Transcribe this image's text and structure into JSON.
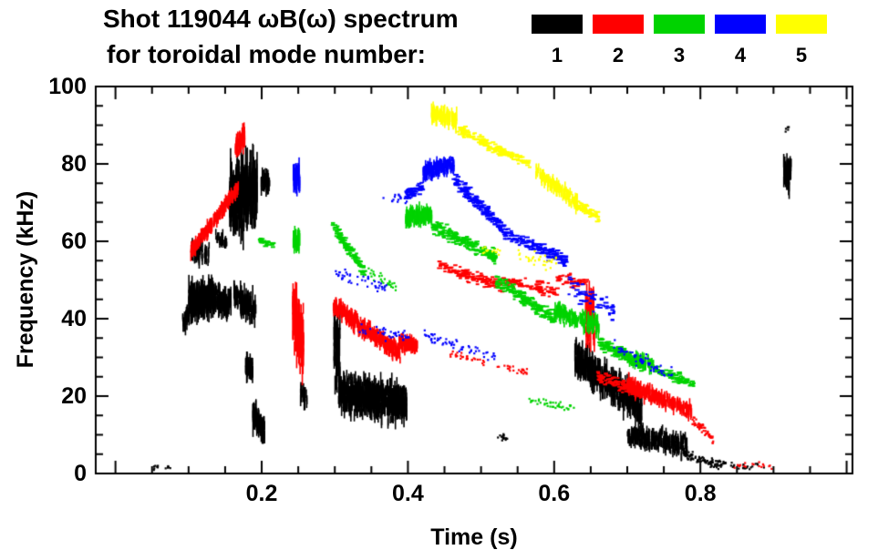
{
  "chart_data": {
    "type": "scatter",
    "subtype": "magnetic-spectrogram",
    "title_line1": "Shot 119044 ωB(ω) spectrum",
    "title_line2": "for toroidal mode number:",
    "xlabel": "Time (s)",
    "ylabel": "Frequency (kHz)",
    "xlim": [
      -0.027,
      1.008
    ],
    "ylim": [
      0,
      100
    ],
    "grid": false,
    "legend_position": "top-right",
    "legend": [
      {
        "mode": "1",
        "color": "#000000"
      },
      {
        "mode": "2",
        "color": "#ff0000"
      },
      {
        "mode": "3",
        "color": "#00d300"
      },
      {
        "mode": "4",
        "color": "#0000ff"
      },
      {
        "mode": "5",
        "color": "#ffff00"
      }
    ],
    "x_major_ticks": [
      0,
      0.2,
      0.4,
      0.6,
      0.8,
      1.0
    ],
    "x_minor_step": 0.05,
    "x_tick_labels": [
      {
        "v": 0.2,
        "label": "0.2"
      },
      {
        "v": 0.4,
        "label": "0.4"
      },
      {
        "v": 0.6,
        "label": "0.6"
      },
      {
        "v": 0.8,
        "label": "0.8"
      }
    ],
    "y_major_ticks": [
      0,
      20,
      40,
      60,
      80,
      100
    ],
    "y_minor_step": 5,
    "y_tick_labels": [
      {
        "v": 0,
        "label": "0"
      },
      {
        "v": 20,
        "label": "20"
      },
      {
        "v": 40,
        "label": "40"
      },
      {
        "v": 60,
        "label": "60"
      },
      {
        "v": 80,
        "label": "80"
      },
      {
        "v": 100,
        "label": "100"
      }
    ],
    "cluster_key": "m=toroidal mode number; t=[t_start,t_end] s; f=[f_start,f_end] kHz center line; s=frequency scatter (kHz); n=marks; st=mark style (v=vertical chirp line, h=horizontal dash, d=dot); l=max chirp length (kHz)",
    "clusters": [
      {
        "m": 1,
        "t": [
          0.048,
          0.058
        ],
        "f": [
          1.5,
          1.5
        ],
        "s": 1,
        "n": 7,
        "st": "d"
      },
      {
        "m": 1,
        "t": [
          0.068,
          0.076
        ],
        "f": [
          1.5,
          1.5
        ],
        "s": 1,
        "n": 6,
        "st": "d"
      },
      {
        "m": 1,
        "t": [
          0.092,
          0.101
        ],
        "f": [
          39,
          41
        ],
        "s": 3,
        "n": 30,
        "st": "v",
        "l": 4
      },
      {
        "m": 1,
        "t": [
          0.1,
          0.136
        ],
        "f": [
          44,
          46
        ],
        "s": 6,
        "n": 300,
        "st": "v",
        "l": 5
      },
      {
        "m": 1,
        "t": [
          0.104,
          0.128
        ],
        "f": [
          57,
          58
        ],
        "s": 4,
        "n": 45,
        "st": "v",
        "l": 4
      },
      {
        "m": 1,
        "t": [
          0.136,
          0.158
        ],
        "f": [
          45,
          44
        ],
        "s": 4.5,
        "n": 110,
        "st": "v",
        "l": 4
      },
      {
        "m": 1,
        "t": [
          0.137,
          0.152
        ],
        "f": [
          61,
          60
        ],
        "s": 2.5,
        "n": 25,
        "st": "v",
        "l": 3
      },
      {
        "m": 1,
        "t": [
          0.156,
          0.194
        ],
        "f": [
          71,
          73
        ],
        "s": 11,
        "n": 380,
        "st": "v",
        "l": 8
      },
      {
        "m": 1,
        "t": [
          0.162,
          0.192
        ],
        "f": [
          46,
          42
        ],
        "s": 4.5,
        "n": 100,
        "st": "v",
        "l": 5
      },
      {
        "m": 1,
        "t": [
          0.178,
          0.188
        ],
        "f": [
          28,
          27
        ],
        "s": 4,
        "n": 55,
        "st": "v",
        "l": 4
      },
      {
        "m": 1,
        "t": [
          0.188,
          0.204
        ],
        "f": [
          15,
          11
        ],
        "s": 4,
        "n": 90,
        "st": "v",
        "l": 5
      },
      {
        "m": 1,
        "t": [
          0.199,
          0.211
        ],
        "f": [
          75,
          75
        ],
        "s": 3.5,
        "n": 45,
        "st": "v",
        "l": 4
      },
      {
        "m": 1,
        "t": [
          0.252,
          0.262
        ],
        "f": [
          21,
          20
        ],
        "s": 3,
        "n": 30,
        "st": "v",
        "l": 3
      },
      {
        "m": 1,
        "t": [
          0.299,
          0.307
        ],
        "f": [
          33,
          30
        ],
        "s": 13,
        "n": 80,
        "st": "v",
        "l": 6
      },
      {
        "m": 1,
        "t": [
          0.305,
          0.398
        ],
        "f": [
          21,
          18
        ],
        "s": 6.5,
        "n": 750,
        "st": "v",
        "l": 4
      },
      {
        "m": 1,
        "t": [
          0.52,
          0.536
        ],
        "f": [
          10,
          9
        ],
        "s": 1.5,
        "n": 14,
        "st": "d"
      },
      {
        "m": 1,
        "t": [
          0.628,
          0.72
        ],
        "f": [
          30,
          17
        ],
        "s": 5.5,
        "n": 460,
        "st": "v",
        "l": 5
      },
      {
        "m": 1,
        "t": [
          0.7,
          0.782
        ],
        "f": [
          10,
          7
        ],
        "s": 3.5,
        "n": 320,
        "st": "v",
        "l": 3
      },
      {
        "m": 1,
        "t": [
          0.782,
          0.835
        ],
        "f": [
          4.5,
          2
        ],
        "s": 1.8,
        "n": 90,
        "st": "d"
      },
      {
        "m": 1,
        "t": [
          0.84,
          0.888
        ],
        "f": [
          2,
          2
        ],
        "s": 1.2,
        "n": 22,
        "st": "d"
      },
      {
        "m": 1,
        "t": [
          0.914,
          0.924
        ],
        "f": [
          78,
          78
        ],
        "s": 5.5,
        "n": 70,
        "st": "v",
        "l": 5
      },
      {
        "m": 1,
        "t": [
          0.916,
          0.921
        ],
        "f": [
          89,
          89
        ],
        "s": 1.5,
        "n": 5,
        "st": "d"
      },
      {
        "m": 2,
        "t": [
          0.103,
          0.168
        ],
        "f": [
          57,
          74
        ],
        "s": 2.3,
        "n": 220,
        "st": "v",
        "l": 3
      },
      {
        "m": 2,
        "t": [
          0.164,
          0.177
        ],
        "f": [
          84,
          87
        ],
        "s": 3.5,
        "n": 70,
        "st": "v",
        "l": 4
      },
      {
        "m": 2,
        "t": [
          0.242,
          0.257
        ],
        "f": [
          40,
          34
        ],
        "s": 12,
        "n": 170,
        "st": "v",
        "l": 6
      },
      {
        "m": 2,
        "t": [
          0.298,
          0.39
        ],
        "f": [
          43,
          31
        ],
        "s": 2.8,
        "n": 400,
        "st": "v",
        "l": 3
      },
      {
        "m": 2,
        "t": [
          0.388,
          0.413
        ],
        "f": [
          34,
          33
        ],
        "s": 2.2,
        "n": 140,
        "st": "v",
        "l": 3
      },
      {
        "m": 2,
        "t": [
          0.443,
          0.53
        ],
        "f": [
          54,
          48
        ],
        "s": 2.3,
        "n": 130,
        "st": "h"
      },
      {
        "m": 2,
        "t": [
          0.53,
          0.605
        ],
        "f": [
          50,
          47
        ],
        "s": 2.3,
        "n": 90,
        "st": "h"
      },
      {
        "m": 2,
        "t": [
          0.605,
          0.645
        ],
        "f": [
          50,
          49
        ],
        "s": 2.5,
        "n": 45,
        "st": "h"
      },
      {
        "m": 2,
        "t": [
          0.643,
          0.655
        ],
        "f": [
          42,
          40
        ],
        "s": 11,
        "n": 70,
        "st": "v",
        "l": 6
      },
      {
        "m": 2,
        "t": [
          0.458,
          0.505
        ],
        "f": [
          31,
          29
        ],
        "s": 1.5,
        "n": 30,
        "st": "d"
      },
      {
        "m": 2,
        "t": [
          0.52,
          0.565
        ],
        "f": [
          28,
          26
        ],
        "s": 1.5,
        "n": 25,
        "st": "d"
      },
      {
        "m": 2,
        "t": [
          0.66,
          0.72
        ],
        "f": [
          25,
          21
        ],
        "s": 2.3,
        "n": 130,
        "st": "h"
      },
      {
        "m": 2,
        "t": [
          0.7,
          0.788
        ],
        "f": [
          23,
          16
        ],
        "s": 2.4,
        "n": 280,
        "st": "v",
        "l": 3
      },
      {
        "m": 2,
        "t": [
          0.788,
          0.818
        ],
        "f": [
          14,
          9
        ],
        "s": 2,
        "n": 55,
        "st": "d"
      },
      {
        "m": 2,
        "t": [
          0.842,
          0.902
        ],
        "f": [
          2,
          2
        ],
        "s": 1.2,
        "n": 18,
        "st": "d"
      },
      {
        "m": 3,
        "t": [
          0.197,
          0.216
        ],
        "f": [
          60,
          59
        ],
        "s": 1.5,
        "n": 28,
        "st": "h"
      },
      {
        "m": 3,
        "t": [
          0.243,
          0.252
        ],
        "f": [
          60,
          60
        ],
        "s": 3.5,
        "n": 40,
        "st": "v",
        "l": 4
      },
      {
        "m": 3,
        "t": [
          0.297,
          0.342
        ],
        "f": [
          64,
          52
        ],
        "s": 2.3,
        "n": 120,
        "st": "h"
      },
      {
        "m": 3,
        "t": [
          0.345,
          0.388
        ],
        "f": [
          52,
          48
        ],
        "s": 2,
        "n": 28,
        "st": "d"
      },
      {
        "m": 3,
        "t": [
          0.397,
          0.433
        ],
        "f": [
          66,
          67
        ],
        "s": 2.4,
        "n": 140,
        "st": "v",
        "l": 4
      },
      {
        "m": 3,
        "t": [
          0.433,
          0.52
        ],
        "f": [
          64,
          56
        ],
        "s": 2.4,
        "n": 210,
        "st": "h"
      },
      {
        "m": 3,
        "t": [
          0.52,
          0.6
        ],
        "f": [
          50,
          40
        ],
        "s": 2.4,
        "n": 170,
        "st": "h"
      },
      {
        "m": 3,
        "t": [
          0.6,
          0.662
        ],
        "f": [
          42,
          38
        ],
        "s": 3.2,
        "n": 170,
        "st": "v",
        "l": 3
      },
      {
        "m": 3,
        "t": [
          0.662,
          0.72
        ],
        "f": [
          34,
          28
        ],
        "s": 2.3,
        "n": 150,
        "st": "h"
      },
      {
        "m": 3,
        "t": [
          0.7,
          0.737
        ],
        "f": [
          30,
          28
        ],
        "s": 2,
        "n": 90,
        "st": "v",
        "l": 3
      },
      {
        "m": 3,
        "t": [
          0.737,
          0.792
        ],
        "f": [
          27,
          23
        ],
        "s": 1.8,
        "n": 85,
        "st": "h"
      },
      {
        "m": 3,
        "t": [
          0.565,
          0.628
        ],
        "f": [
          19,
          17
        ],
        "s": 1.5,
        "n": 40,
        "st": "d"
      },
      {
        "m": 4,
        "t": [
          0.243,
          0.252
        ],
        "f": [
          76,
          77
        ],
        "s": 5.5,
        "n": 45,
        "st": "v",
        "l": 5
      },
      {
        "m": 4,
        "t": [
          0.3,
          0.372
        ],
        "f": [
          52,
          48
        ],
        "s": 2.8,
        "n": 45,
        "st": "d"
      },
      {
        "m": 4,
        "t": [
          0.332,
          0.402
        ],
        "f": [
          38,
          35
        ],
        "s": 2.4,
        "n": 38,
        "st": "d"
      },
      {
        "m": 4,
        "t": [
          0.365,
          0.4
        ],
        "f": [
          71,
          71
        ],
        "s": 1.8,
        "n": 18,
        "st": "d"
      },
      {
        "m": 4,
        "t": [
          0.398,
          0.421
        ],
        "f": [
          72,
          74
        ],
        "s": 2,
        "n": 55,
        "st": "h"
      },
      {
        "m": 4,
        "t": [
          0.421,
          0.463
        ],
        "f": [
          78,
          80
        ],
        "s": 2.4,
        "n": 150,
        "st": "v",
        "l": 3
      },
      {
        "m": 4,
        "t": [
          0.463,
          0.532
        ],
        "f": [
          76,
          63
        ],
        "s": 2.4,
        "n": 170,
        "st": "h"
      },
      {
        "m": 4,
        "t": [
          0.532,
          0.617
        ],
        "f": [
          62,
          55
        ],
        "s": 2.4,
        "n": 140,
        "st": "h"
      },
      {
        "m": 4,
        "t": [
          0.422,
          0.52
        ],
        "f": [
          36,
          30
        ],
        "s": 2.3,
        "n": 60,
        "st": "d"
      },
      {
        "m": 4,
        "t": [
          0.62,
          0.682
        ],
        "f": [
          48,
          42
        ],
        "s": 3.8,
        "n": 55,
        "st": "h"
      },
      {
        "m": 4,
        "t": [
          0.682,
          0.762
        ],
        "f": [
          33,
          25
        ],
        "s": 2.8,
        "n": 60,
        "st": "d"
      },
      {
        "m": 5,
        "t": [
          0.432,
          0.468
        ],
        "f": [
          93,
          91
        ],
        "s": 2.4,
        "n": 100,
        "st": "v",
        "l": 4
      },
      {
        "m": 5,
        "t": [
          0.468,
          0.521
        ],
        "f": [
          89,
          84
        ],
        "s": 2,
        "n": 85,
        "st": "h"
      },
      {
        "m": 5,
        "t": [
          0.521,
          0.567
        ],
        "f": [
          84,
          80
        ],
        "s": 2,
        "n": 75,
        "st": "h"
      },
      {
        "m": 5,
        "t": [
          0.575,
          0.632
        ],
        "f": [
          78,
          70
        ],
        "s": 2.4,
        "n": 140,
        "st": "v",
        "l": 3
      },
      {
        "m": 5,
        "t": [
          0.632,
          0.662
        ],
        "f": [
          69,
          66
        ],
        "s": 2,
        "n": 55,
        "st": "h"
      },
      {
        "m": 5,
        "t": [
          0.545,
          0.603
        ],
        "f": [
          57,
          54
        ],
        "s": 2.4,
        "n": 32,
        "st": "d"
      },
      {
        "m": 5,
        "t": [
          0.502,
          0.532
        ],
        "f": [
          58,
          57
        ],
        "s": 1.5,
        "n": 14,
        "st": "d"
      }
    ]
  }
}
